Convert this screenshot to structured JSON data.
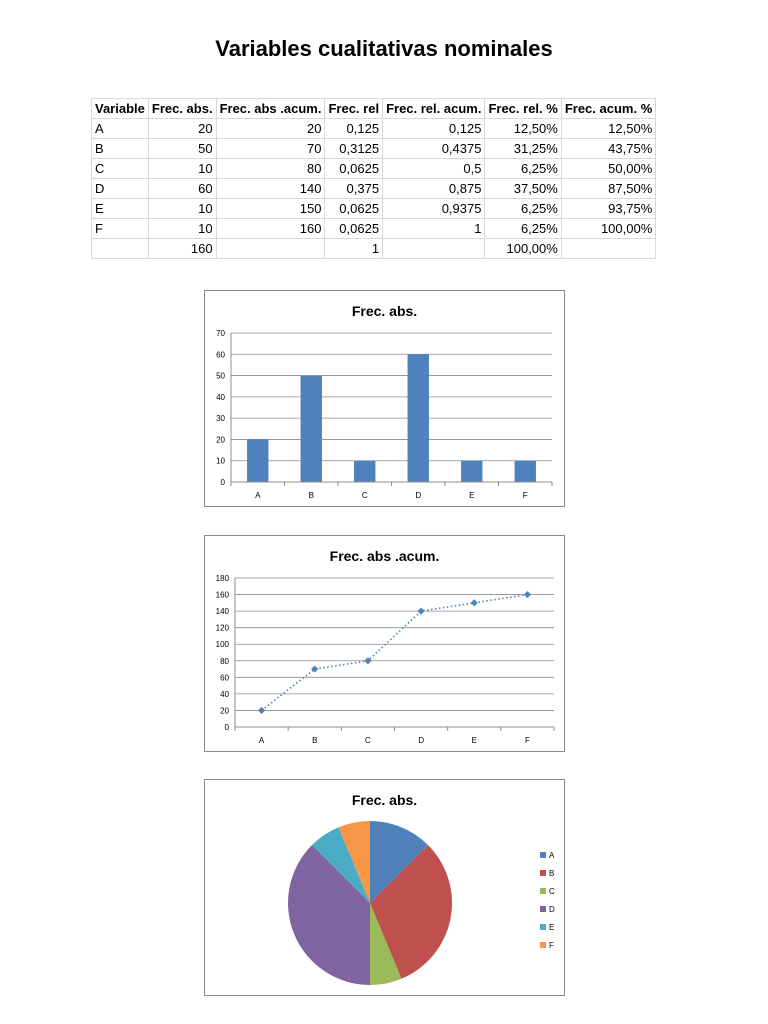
{
  "page": {
    "title": "Variables cualitativas nominales"
  },
  "table": {
    "headers": [
      "Variable",
      "Frec. abs.",
      "Frec. abs .acum.",
      "Frec. rel",
      "Frec. rel. acum.",
      "Frec. rel. %",
      "Frec. acum. %"
    ],
    "rows": [
      [
        "A",
        "20",
        "20",
        "0,125",
        "0,125",
        "12,50%",
        "12,50%"
      ],
      [
        "B",
        "50",
        "70",
        "0,3125",
        "0,4375",
        "31,25%",
        "43,75%"
      ],
      [
        "C",
        "10",
        "80",
        "0,0625",
        "0,5",
        "6,25%",
        "50,00%"
      ],
      [
        "D",
        "60",
        "140",
        "0,375",
        "0,875",
        "37,50%",
        "87,50%"
      ],
      [
        "E",
        "10",
        "150",
        "0,0625",
        "0,9375",
        "6,25%",
        "93,75%"
      ],
      [
        "F",
        "10",
        "160",
        "0,0625",
        "1",
        "6,25%",
        "100,00%"
      ],
      [
        "",
        "160",
        "",
        "1",
        "",
        "100,00%",
        ""
      ]
    ]
  },
  "chart_data": [
    {
      "type": "bar",
      "title": "Frec. abs.",
      "categories": [
        "A",
        "B",
        "C",
        "D",
        "E",
        "F"
      ],
      "values": [
        20,
        50,
        10,
        60,
        10,
        10
      ],
      "ylim": [
        0,
        70
      ],
      "yticks": [
        0,
        10,
        20,
        30,
        40,
        50,
        60,
        70
      ],
      "grid": true,
      "color": "#4f81bd"
    },
    {
      "type": "line",
      "title": "Frec. abs .acum.",
      "categories": [
        "A",
        "B",
        "C",
        "D",
        "E",
        "F"
      ],
      "values": [
        20,
        70,
        80,
        140,
        150,
        160
      ],
      "ylim": [
        0,
        180
      ],
      "yticks": [
        0,
        20,
        40,
        60,
        80,
        100,
        120,
        140,
        160,
        180
      ],
      "grid": true,
      "line_style": "dotted",
      "marker": "diamond",
      "color": "#4f81bd"
    },
    {
      "type": "pie",
      "title": "Frec. abs.",
      "categories": [
        "A",
        "B",
        "C",
        "D",
        "E",
        "F"
      ],
      "values": [
        20,
        50,
        10,
        60,
        10,
        10
      ],
      "colors": [
        "#4f81bd",
        "#c0504d",
        "#9bbb59",
        "#8064a2",
        "#4bacc6",
        "#f79646"
      ],
      "legend": "right"
    }
  ]
}
